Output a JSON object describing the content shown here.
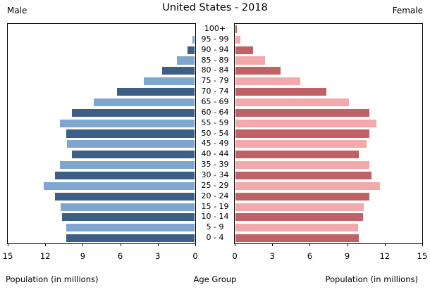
{
  "header": {
    "title": "United States - 2018",
    "left_label": "Male",
    "right_label": "Female"
  },
  "axis": {
    "xlabel_left": "Population (in millions)",
    "xlabel_center": "Age Group",
    "xlabel_right": "Population (in millions)",
    "ticks_left": [
      15,
      12,
      9,
      6,
      3,
      0
    ],
    "ticks_right": [
      0,
      3,
      6,
      9,
      12,
      15
    ]
  },
  "colors": {
    "male_dark": "#3d5f87",
    "male_light": "#7ea6ce",
    "female_dark": "#c06168",
    "female_light": "#f3a8ad",
    "bar_edge": "#fffef2",
    "spine": "#000000"
  },
  "chart_data": {
    "type": "bar",
    "orientation": "horizontal",
    "title": "United States - 2018",
    "subtitle": "Population pyramid, mirrored horizontal bars",
    "unit": "millions",
    "xlim": [
      0,
      15
    ],
    "grid": false,
    "legend_position": "none",
    "categories": [
      "0 - 4",
      "5 - 9",
      "10 - 14",
      "15 - 19",
      "20 - 24",
      "25 - 29",
      "30 - 34",
      "35 - 39",
      "40 - 44",
      "45 - 49",
      "50 - 54",
      "55 - 59",
      "60 - 64",
      "65 - 69",
      "70 - 74",
      "75 - 79",
      "80 - 84",
      "85 - 89",
      "90 - 94",
      "95 - 99",
      "100+"
    ],
    "series": [
      {
        "name": "Male",
        "side": "left",
        "axis_direction": "reversed",
        "values": [
          10.4,
          10.4,
          10.7,
          10.8,
          11.3,
          12.2,
          11.3,
          10.9,
          9.9,
          10.3,
          10.4,
          10.9,
          9.9,
          8.2,
          6.3,
          4.2,
          2.7,
          1.5,
          0.7,
          0.3,
          0.1
        ]
      },
      {
        "name": "Female",
        "side": "right",
        "axis_direction": "normal",
        "values": [
          10.0,
          9.9,
          10.3,
          10.4,
          10.8,
          11.7,
          11.0,
          10.8,
          10.0,
          10.6,
          10.8,
          11.4,
          10.8,
          9.2,
          7.4,
          5.3,
          3.7,
          2.5,
          1.5,
          0.5,
          0.2
        ]
      }
    ]
  }
}
